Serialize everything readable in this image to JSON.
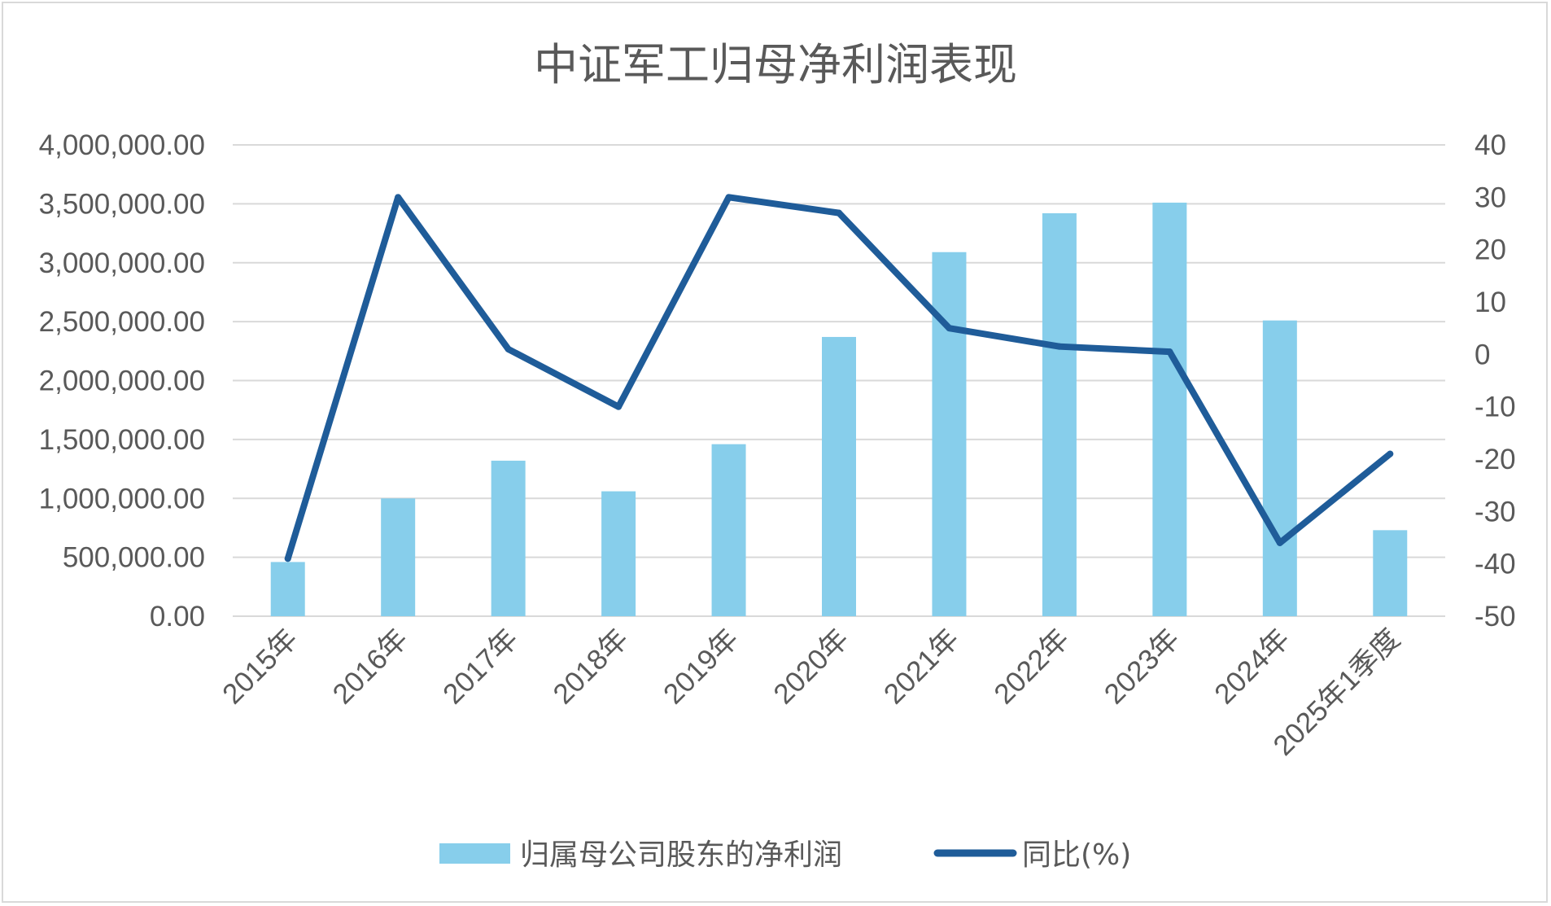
{
  "chart_data": {
    "type": "bar",
    "title": "中证军工归母净利润表现",
    "categories": [
      "2015年",
      "2016年",
      "2017年",
      "2018年",
      "2019年",
      "2020年",
      "2021年",
      "2022年",
      "2023年",
      "2024年",
      "2025年1季度"
    ],
    "series": [
      {
        "name": "归属母公司股东的净利润",
        "type": "bar",
        "axis": "left",
        "color": "#87CEEB",
        "values": [
          460000,
          1000000,
          1320000,
          1060000,
          1460000,
          2370000,
          3090000,
          3420000,
          3510000,
          2510000,
          730000
        ]
      },
      {
        "name": "同比(%)",
        "type": "line",
        "axis": "right",
        "color": "#1F5C99",
        "values": [
          -39,
          30,
          1,
          -10,
          30,
          27,
          5,
          1.5,
          0.5,
          -36,
          -19
        ]
      }
    ],
    "y_left": {
      "min": 0,
      "max": 4000000,
      "step": 500000,
      "tick_labels": [
        "0.00",
        "500,000.00",
        "1,000,000.00",
        "1,500,000.00",
        "2,000,000.00",
        "2,500,000.00",
        "3,000,000.00",
        "3,500,000.00",
        "4,000,000.00"
      ]
    },
    "y_right": {
      "min": -50,
      "max": 40,
      "step": 10,
      "tick_labels": [
        "-50",
        "-40",
        "-30",
        "-20",
        "-10",
        "0",
        "10",
        "20",
        "30",
        "40"
      ]
    },
    "grid": true,
    "legend_position": "bottom"
  }
}
